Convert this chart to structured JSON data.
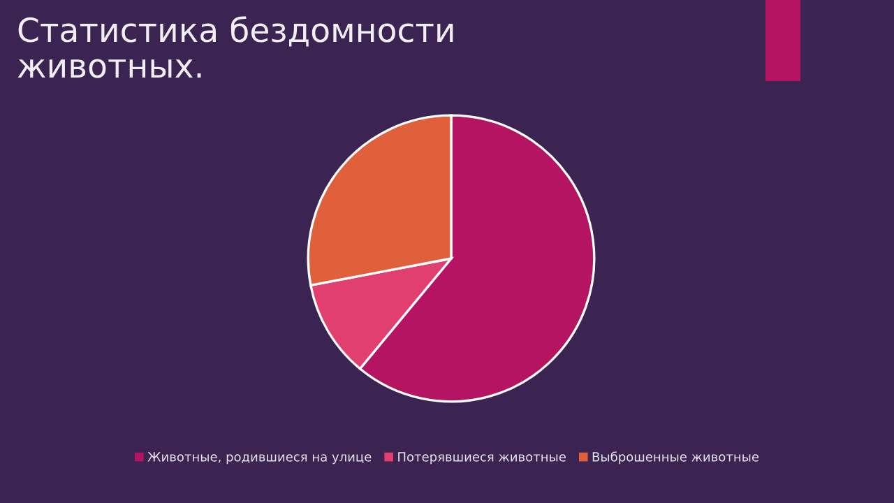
{
  "chart_data": {
    "type": "pie",
    "title": "Статистика бездомности животных.",
    "categories": [
      "Животные, родившиеся на улице",
      "Потерявшиеся животные",
      "Выброшенные животные"
    ],
    "values": [
      61,
      11,
      28
    ],
    "colors": [
      "#b51463",
      "#e13f6f",
      "#e0603b"
    ],
    "legend": "bottom"
  }
}
